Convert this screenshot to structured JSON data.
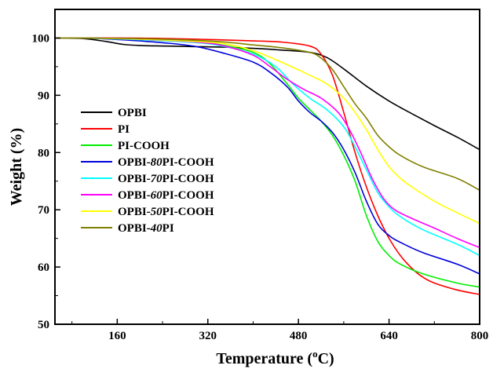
{
  "chart_data": {
    "type": "line",
    "xlabel": "Temperature (°C)",
    "xlabel_main": "Temperature (",
    "xlabel_sup": "o",
    "xlabel_unit": "C)",
    "ylabel": "Weight (%)",
    "xlim": [
      50,
      800
    ],
    "ylim": [
      50,
      105
    ],
    "xticks": [
      160,
      320,
      480,
      640,
      800
    ],
    "yticks": [
      50,
      60,
      70,
      80,
      90,
      100
    ],
    "grid": false,
    "legend_position": "left-center",
    "series": [
      {
        "name": "OPBI",
        "legend": [
          "OPBI",
          "",
          ""
        ],
        "color": "#000000",
        "x": [
          50,
          100,
          140,
          170,
          200,
          250,
          300,
          350,
          400,
          450,
          500,
          530,
          560,
          600,
          640,
          680,
          720,
          760,
          800
        ],
        "y": [
          100,
          99.9,
          99.4,
          98.9,
          98.7,
          98.6,
          98.5,
          98.4,
          98.2,
          97.9,
          97.5,
          96.6,
          94.6,
          91.6,
          89.0,
          86.8,
          84.7,
          82.7,
          80.5
        ]
      },
      {
        "name": "PI",
        "legend": [
          "PI",
          "",
          ""
        ],
        "color": "#ff0000",
        "x": [
          50,
          100,
          200,
          300,
          400,
          450,
          500,
          520,
          540,
          560,
          580,
          600,
          620,
          640,
          660,
          680,
          700,
          720,
          760,
          800
        ],
        "y": [
          100,
          100,
          100,
          99.8,
          99.5,
          99.3,
          98.6,
          97.2,
          93.5,
          87.0,
          80.0,
          74.0,
          69.0,
          65.0,
          62.0,
          59.8,
          58.2,
          57.2,
          56.0,
          55.2
        ]
      },
      {
        "name": "PI-COOH",
        "legend": [
          "PI-COOH",
          "",
          ""
        ],
        "color": "#00ee00",
        "x": [
          50,
          100,
          200,
          300,
          350,
          400,
          430,
          460,
          480,
          500,
          520,
          540,
          560,
          580,
          600,
          620,
          640,
          660,
          700,
          760,
          800
        ],
        "y": [
          100,
          100,
          99.8,
          99.3,
          98.7,
          97.5,
          95.5,
          92.0,
          89.5,
          87.5,
          85.5,
          83.0,
          79.5,
          75.0,
          69.0,
          64.5,
          62.0,
          60.5,
          58.8,
          57.2,
          56.5
        ]
      },
      {
        "name": "OPBI-80PI-COOH",
        "legend": [
          "OPBI-",
          "80",
          "PI-COOH"
        ],
        "color": "#0000dd",
        "x": [
          50,
          100,
          150,
          200,
          250,
          300,
          350,
          400,
          430,
          460,
          480,
          500,
          520,
          540,
          560,
          580,
          600,
          620,
          640,
          660,
          700,
          760,
          800
        ],
        "y": [
          100,
          100,
          99.8,
          99.5,
          99.1,
          98.5,
          97.3,
          95.8,
          94.0,
          91.5,
          89.0,
          87.0,
          85.5,
          83.5,
          80.5,
          76.5,
          71.5,
          67.5,
          65.5,
          64.3,
          62.5,
          60.5,
          58.8
        ]
      },
      {
        "name": "OPBI-70PI-COOH",
        "legend": [
          "OPBI-",
          "70",
          "PI-COOH"
        ],
        "color": "#00ffff",
        "x": [
          50,
          100,
          200,
          300,
          350,
          400,
          440,
          470,
          500,
          530,
          560,
          580,
          600,
          620,
          640,
          660,
          700,
          760,
          800
        ],
        "y": [
          100,
          100,
          99.7,
          99.2,
          98.5,
          97.2,
          95.0,
          92.0,
          89.5,
          87.5,
          84.5,
          81.0,
          77.0,
          73.0,
          70.5,
          68.8,
          66.5,
          64.0,
          62.0
        ]
      },
      {
        "name": "OPBI-60PI-COOH",
        "legend": [
          "OPBI-",
          "60",
          "PI-COOH"
        ],
        "color": "#ff00ff",
        "x": [
          50,
          100,
          200,
          300,
          350,
          400,
          430,
          460,
          490,
          520,
          550,
          570,
          590,
          610,
          630,
          650,
          680,
          720,
          760,
          800
        ],
        "y": [
          100,
          100,
          99.8,
          99.3,
          98.6,
          97.0,
          95.0,
          92.8,
          91.0,
          89.5,
          87.0,
          84.0,
          80.0,
          75.5,
          72.0,
          70.0,
          68.5,
          66.8,
          65.0,
          63.4
        ]
      },
      {
        "name": "OPBI-50PI-COOH",
        "legend": [
          "OPBI-",
          "50",
          "PI-COOH"
        ],
        "color": "#ffff00",
        "x": [
          50,
          100,
          200,
          300,
          350,
          400,
          450,
          500,
          530,
          560,
          580,
          600,
          620,
          640,
          660,
          680,
          720,
          760,
          800
        ],
        "y": [
          100,
          100,
          99.8,
          99.4,
          99.0,
          97.8,
          95.8,
          93.5,
          92.0,
          89.5,
          87.0,
          84.0,
          80.5,
          77.5,
          75.5,
          74.0,
          71.5,
          69.5,
          67.6
        ]
      },
      {
        "name": "OPBI-40PI",
        "legend": [
          "OPBI-",
          "40",
          "PI"
        ],
        "color": "#808000",
        "x": [
          50,
          100,
          200,
          300,
          350,
          400,
          450,
          500,
          520,
          540,
          560,
          580,
          600,
          620,
          640,
          660,
          700,
          760,
          800
        ],
        "y": [
          100,
          100,
          99.9,
          99.6,
          99.3,
          98.8,
          98.3,
          97.5,
          96.5,
          94.5,
          91.5,
          88.5,
          86.0,
          83.0,
          81.0,
          79.5,
          77.5,
          75.5,
          73.4
        ]
      }
    ]
  }
}
